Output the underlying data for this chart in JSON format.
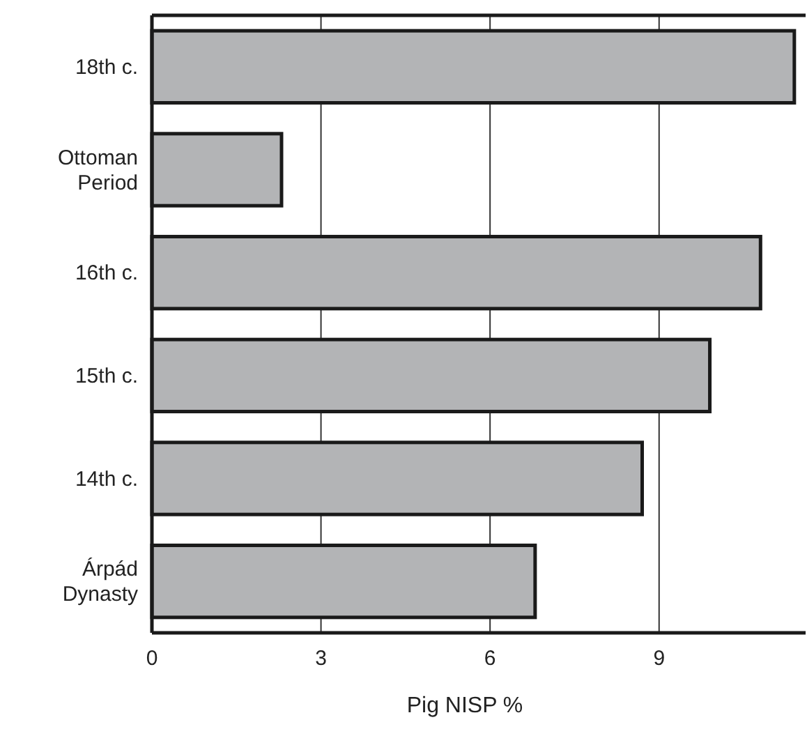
{
  "chart_data": {
    "type": "bar",
    "orientation": "horizontal",
    "xlabel": "Pig NISP %",
    "categories": [
      "18th c.",
      "Ottoman Period",
      "16th c.",
      "15th c.",
      "14th c.",
      "Árpád Dynasty"
    ],
    "values": [
      11.4,
      2.3,
      10.8,
      9.9,
      8.7,
      6.8
    ],
    "color": "#b3b4b6",
    "xlim": [
      0,
      11.6
    ],
    "xticks": [
      0,
      3,
      6,
      9
    ],
    "grid": "x"
  }
}
